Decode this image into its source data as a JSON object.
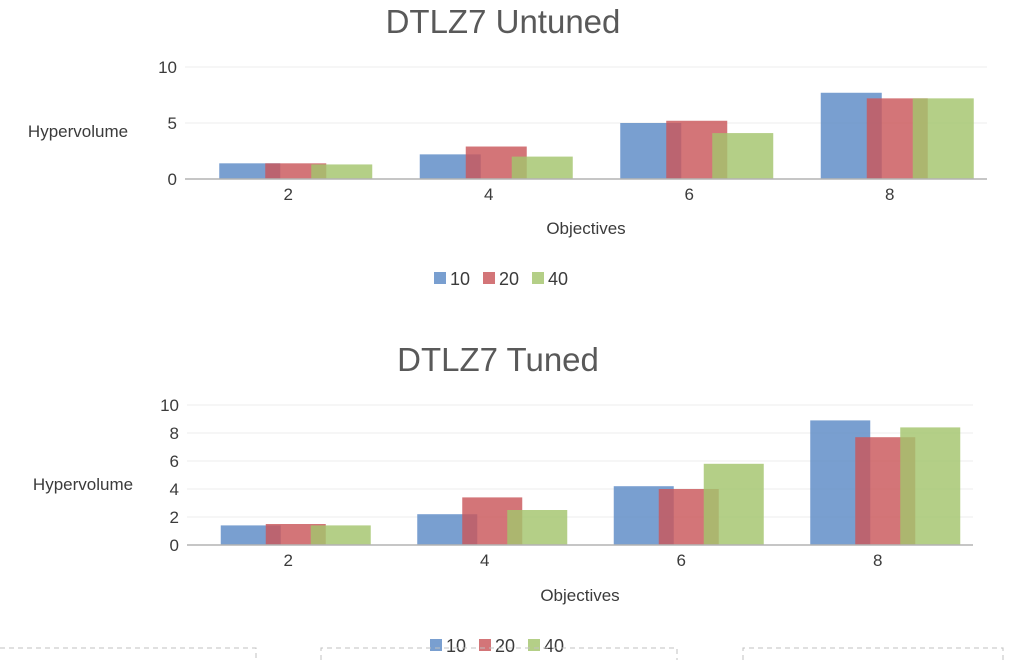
{
  "chart_data": [
    {
      "type": "bar",
      "title": "DTLZ7 Untuned",
      "xlabel": "Objectives",
      "ylabel": "Hypervolume",
      "categories": [
        "2",
        "4",
        "6",
        "8"
      ],
      "ylim": [
        0,
        10
      ],
      "yticks": [
        0,
        5,
        10
      ],
      "legend": "bottom",
      "series": [
        {
          "name": "10",
          "color": "#5b8ac6",
          "values": [
            1.4,
            2.2,
            5.0,
            7.7
          ]
        },
        {
          "name": "20",
          "color": "#c9575a",
          "values": [
            1.4,
            2.9,
            5.2,
            7.2
          ]
        },
        {
          "name": "40",
          "color": "#a3c46c",
          "values": [
            1.3,
            2.0,
            4.1,
            7.2
          ]
        }
      ]
    },
    {
      "type": "bar",
      "title": "DTLZ7 Tuned",
      "xlabel": "Objectives",
      "ylabel": "Hypervolume",
      "categories": [
        "2",
        "4",
        "6",
        "8"
      ],
      "ylim": [
        0,
        10
      ],
      "yticks": [
        0,
        2,
        4,
        6,
        8,
        10
      ],
      "legend": "bottom",
      "series": [
        {
          "name": "10",
          "color": "#5b8ac6",
          "values": [
            1.4,
            2.2,
            4.2,
            8.9
          ]
        },
        {
          "name": "20",
          "color": "#c9575a",
          "values": [
            1.5,
            3.4,
            4.0,
            7.7
          ]
        },
        {
          "name": "40",
          "color": "#a3c46c",
          "values": [
            1.4,
            2.5,
            5.8,
            8.4
          ]
        }
      ]
    }
  ]
}
